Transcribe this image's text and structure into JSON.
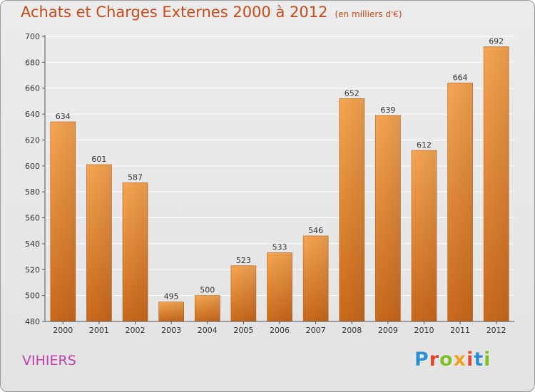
{
  "header": {
    "title": "Achats et Charges Externes 2000 à 2012",
    "unit": "(en milliers d'€)"
  },
  "footer": {
    "place": "VIHIERS",
    "brand": "Proxiti"
  },
  "colors": {
    "title": "#c94a1a",
    "place": "#c23fb0",
    "bar_light": "#f5a550",
    "bar_dark": "#c8671a",
    "grid": "#ffffff"
  },
  "chart_data": {
    "type": "bar",
    "title": "Achats et Charges Externes 2000 à 2012",
    "subtitle": "(en milliers d'€)",
    "xlabel": "",
    "ylabel": "",
    "categories": [
      "2000",
      "2001",
      "2002",
      "2003",
      "2004",
      "2005",
      "2006",
      "2007",
      "2008",
      "2009",
      "2010",
      "2011",
      "2012"
    ],
    "values": [
      634,
      601,
      587,
      495,
      500,
      523,
      533,
      546,
      652,
      639,
      612,
      664,
      692
    ],
    "ylim": [
      480,
      700
    ],
    "yticks": [
      480,
      500,
      520,
      540,
      560,
      580,
      600,
      620,
      640,
      660,
      680,
      700
    ],
    "grid": true,
    "data_labels": true
  }
}
